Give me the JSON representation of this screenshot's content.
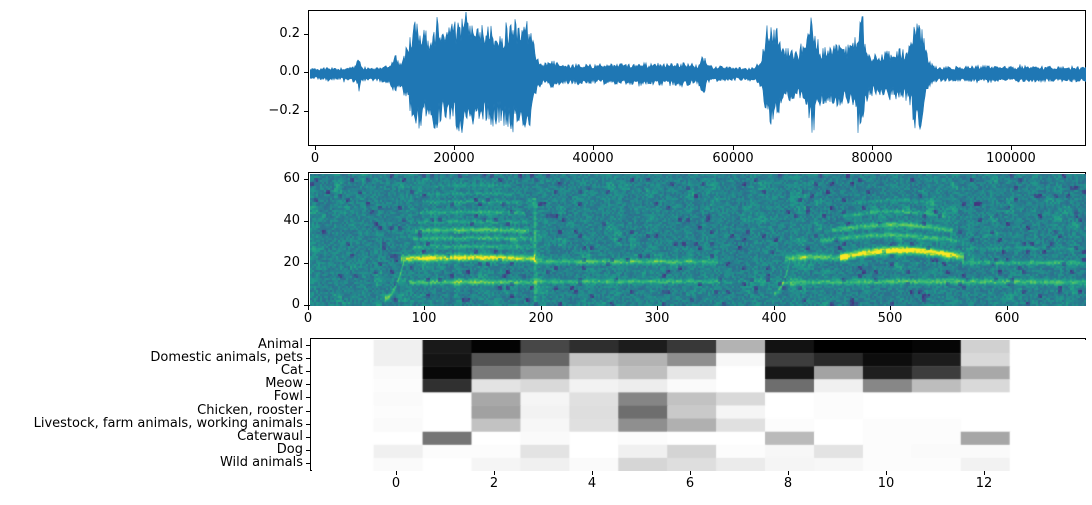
{
  "figure": {
    "background": "#ffffff",
    "axes_color": "#000000",
    "text_color": "#000000"
  },
  "chart_data": [
    {
      "id": "waveform",
      "type": "line",
      "title": "",
      "xlabel": "",
      "ylabel": "",
      "line_color": "#1f77b4",
      "xlim": [
        -1000,
        110600
      ],
      "ylim": [
        -0.38,
        0.325
      ],
      "xticks": [
        {
          "value": 0,
          "label": "0"
        },
        {
          "value": 20000,
          "label": "20000"
        },
        {
          "value": 40000,
          "label": "40000"
        },
        {
          "value": 60000,
          "label": "60000"
        },
        {
          "value": 80000,
          "label": "80000"
        },
        {
          "value": 100000,
          "label": "100000"
        }
      ],
      "yticks": [
        {
          "value": 0.2,
          "label": "0.2"
        },
        {
          "value": 0.0,
          "label": "0.0"
        },
        {
          "value": -0.2,
          "label": "−0.2"
        }
      ],
      "grid": false,
      "envelope": [
        [
          0,
          0.03
        ],
        [
          1500,
          0.035
        ],
        [
          3000,
          0.03
        ],
        [
          4500,
          0.04
        ],
        [
          5600,
          0.045
        ],
        [
          6000,
          0.095
        ],
        [
          6400,
          0.04
        ],
        [
          7500,
          0.035
        ],
        [
          9000,
          0.04
        ],
        [
          10500,
          0.05
        ],
        [
          11300,
          0.12
        ],
        [
          11800,
          0.06
        ],
        [
          12300,
          0.09
        ],
        [
          12800,
          0.14
        ],
        [
          13500,
          0.22
        ],
        [
          14200,
          0.29
        ],
        [
          15000,
          0.26
        ],
        [
          16000,
          0.23
        ],
        [
          17000,
          0.285
        ],
        [
          17800,
          0.25
        ],
        [
          18700,
          0.23
        ],
        [
          19500,
          0.27
        ],
        [
          20300,
          0.31
        ],
        [
          21000,
          0.3
        ],
        [
          22000,
          0.26
        ],
        [
          23000,
          0.285
        ],
        [
          24000,
          0.255
        ],
        [
          25000,
          0.27
        ],
        [
          26000,
          0.245
        ],
        [
          27000,
          0.265
        ],
        [
          28000,
          0.31
        ],
        [
          29000,
          0.285
        ],
        [
          29800,
          0.3
        ],
        [
          30500,
          0.28
        ],
        [
          31000,
          0.22
        ],
        [
          31600,
          0.09
        ],
        [
          32200,
          0.055
        ],
        [
          33000,
          0.06
        ],
        [
          34000,
          0.075
        ],
        [
          35000,
          0.055
        ],
        [
          36500,
          0.05
        ],
        [
          38000,
          0.055
        ],
        [
          40000,
          0.05
        ],
        [
          42000,
          0.06
        ],
        [
          44000,
          0.055
        ],
        [
          46000,
          0.065
        ],
        [
          48000,
          0.055
        ],
        [
          50000,
          0.06
        ],
        [
          52000,
          0.065
        ],
        [
          53500,
          0.06
        ],
        [
          54800,
          0.05
        ],
        [
          55600,
          0.11
        ],
        [
          56100,
          0.05
        ],
        [
          57000,
          0.045
        ],
        [
          58500,
          0.04
        ],
        [
          60000,
          0.035
        ],
        [
          62000,
          0.035
        ],
        [
          63200,
          0.045
        ],
        [
          64000,
          0.1
        ],
        [
          64800,
          0.24
        ],
        [
          65600,
          0.285
        ],
        [
          66400,
          0.23
        ],
        [
          67200,
          0.13
        ],
        [
          68000,
          0.15
        ],
        [
          68800,
          0.12
        ],
        [
          69600,
          0.135
        ],
        [
          70400,
          0.18
        ],
        [
          70900,
          0.29
        ],
        [
          71400,
          0.32
        ],
        [
          71900,
          0.21
        ],
        [
          72600,
          0.145
        ],
        [
          73400,
          0.165
        ],
        [
          74200,
          0.15
        ],
        [
          75000,
          0.17
        ],
        [
          75800,
          0.145
        ],
        [
          76600,
          0.16
        ],
        [
          77300,
          0.2
        ],
        [
          77900,
          0.32
        ],
        [
          78400,
          0.3
        ],
        [
          79000,
          0.15
        ],
        [
          79600,
          0.105
        ],
        [
          80400,
          0.13
        ],
        [
          81200,
          0.11
        ],
        [
          82000,
          0.135
        ],
        [
          82800,
          0.12
        ],
        [
          83600,
          0.14
        ],
        [
          84400,
          0.125
        ],
        [
          85200,
          0.15
        ],
        [
          85800,
          0.25
        ],
        [
          86300,
          0.33
        ],
        [
          86900,
          0.28
        ],
        [
          87500,
          0.15
        ],
        [
          88100,
          0.07
        ],
        [
          88800,
          0.045
        ],
        [
          90000,
          0.038
        ],
        [
          92000,
          0.04
        ],
        [
          94000,
          0.042
        ],
        [
          96000,
          0.048
        ],
        [
          98000,
          0.042
        ],
        [
          100000,
          0.04
        ],
        [
          102000,
          0.045
        ],
        [
          104000,
          0.042
        ],
        [
          106000,
          0.04
        ],
        [
          108000,
          0.043
        ],
        [
          110500,
          0.04
        ]
      ]
    },
    {
      "id": "spectrogram",
      "type": "heatmap",
      "title": "",
      "xlabel": "",
      "ylabel": "",
      "colormap": "viridis",
      "xlim": [
        0,
        667
      ],
      "ylim": [
        0,
        63.5
      ],
      "xticks": [
        {
          "value": 0,
          "label": "0"
        },
        {
          "value": 100,
          "label": "100"
        },
        {
          "value": 200,
          "label": "200"
        },
        {
          "value": 300,
          "label": "300"
        },
        {
          "value": 400,
          "label": "400"
        },
        {
          "value": 500,
          "label": "500"
        },
        {
          "value": 600,
          "label": "600"
        }
      ],
      "yticks": [
        {
          "value": 0,
          "label": "0"
        },
        {
          "value": 20,
          "label": "20"
        },
        {
          "value": 40,
          "label": "40"
        },
        {
          "value": 60,
          "label": "60"
        }
      ],
      "background_level": 0.5,
      "harmonics": [
        {
          "kind": "sweep",
          "x0": 64,
          "x1": 80,
          "y0": 4,
          "y1": 21,
          "w": 1.4,
          "amp": 0.3
        },
        {
          "kind": "line",
          "x0": 78,
          "x1": 193,
          "y": 23,
          "w": 1.6,
          "amp": 0.55,
          "arc": 0.5
        },
        {
          "kind": "line",
          "x0": 193,
          "x1": 350,
          "y": 21.5,
          "w": 1.2,
          "amp": 0.28,
          "arc": 0
        },
        {
          "kind": "line",
          "x0": 85,
          "x1": 195,
          "y": 11.5,
          "w": 1.2,
          "amp": 0.33,
          "arc": 0.3
        },
        {
          "kind": "line",
          "x0": 195,
          "x1": 352,
          "y": 12,
          "w": 1.1,
          "amp": 0.26,
          "arc": 0
        },
        {
          "kind": "line",
          "x0": 88,
          "x1": 190,
          "y": 28.5,
          "w": 1.0,
          "amp": 0.17,
          "arc": 0.4
        },
        {
          "kind": "line",
          "x0": 88,
          "x1": 190,
          "y": 32.5,
          "w": 1.1,
          "amp": 0.22,
          "arc": 0.4
        },
        {
          "kind": "line",
          "x0": 90,
          "x1": 188,
          "y": 36.5,
          "w": 1.2,
          "amp": 0.3,
          "arc": 0.4
        },
        {
          "kind": "line",
          "x0": 92,
          "x1": 186,
          "y": 40.5,
          "w": 1.0,
          "amp": 0.14,
          "arc": 0.4
        },
        {
          "kind": "line",
          "x0": 94,
          "x1": 184,
          "y": 45,
          "w": 1.0,
          "amp": 0.19,
          "arc": 0.4
        },
        {
          "kind": "line",
          "x0": 97,
          "x1": 180,
          "y": 50,
          "w": 0.9,
          "amp": 0.13,
          "arc": 0.3
        },
        {
          "kind": "line",
          "x0": 100,
          "x1": 176,
          "y": 54,
          "w": 0.8,
          "amp": 0.1,
          "arc": 0.3
        },
        {
          "kind": "line",
          "x0": 104,
          "x1": 172,
          "y": 58,
          "w": 0.8,
          "amp": 0.09,
          "arc": 0.3
        },
        {
          "kind": "vline",
          "x": 193,
          "y0": 2,
          "y1": 52,
          "w": 1.6,
          "amp": 0.16
        },
        {
          "kind": "sweep",
          "x0": 398,
          "x1": 412,
          "y0": 6,
          "y1": 22,
          "w": 1.4,
          "amp": 0.22
        },
        {
          "kind": "line",
          "x0": 408,
          "x1": 462,
          "y": 23,
          "w": 1.4,
          "amp": 0.34,
          "arc": 0.8
        },
        {
          "kind": "line",
          "x0": 455,
          "x1": 562,
          "y": 23.8,
          "w": 1.8,
          "amp": 0.6,
          "arc": 3.2
        },
        {
          "kind": "line",
          "x0": 438,
          "x1": 556,
          "y": 31.5,
          "w": 1.2,
          "amp": 0.26,
          "arc": 2.8
        },
        {
          "kind": "line",
          "x0": 448,
          "x1": 552,
          "y": 36.5,
          "w": 1.2,
          "amp": 0.3,
          "arc": 2.8
        },
        {
          "kind": "line",
          "x0": 458,
          "x1": 546,
          "y": 43.5,
          "w": 1.0,
          "amp": 0.17,
          "arc": 2.2
        },
        {
          "kind": "line",
          "x0": 468,
          "x1": 538,
          "y": 49.5,
          "w": 0.9,
          "amp": 0.11,
          "arc": 1.6
        },
        {
          "kind": "line",
          "x0": 560,
          "x1": 667,
          "y": 21,
          "w": 1.1,
          "amp": 0.22,
          "arc": 0
        },
        {
          "kind": "line",
          "x0": 350,
          "x1": 405,
          "y": 12,
          "w": 1.0,
          "amp": 0.1,
          "arc": 0
        },
        {
          "kind": "line",
          "x0": 405,
          "x1": 667,
          "y": 11.5,
          "w": 1.3,
          "amp": 0.3,
          "arc": 0.5
        },
        {
          "kind": "line",
          "x0": 560,
          "x1": 667,
          "y": 28,
          "w": 0.9,
          "amp": 0.09,
          "arc": 0
        }
      ]
    },
    {
      "id": "class_probabilities",
      "type": "heatmap",
      "title": "",
      "xlabel": "",
      "ylabel": "",
      "colormap": "greys",
      "xlim": [
        -1.76,
        14.06
      ],
      "xticks": [
        {
          "value": 0,
          "label": "0"
        },
        {
          "value": 2,
          "label": "2"
        },
        {
          "value": 4,
          "label": "4"
        },
        {
          "value": 6,
          "label": "6"
        },
        {
          "value": 8,
          "label": "8"
        },
        {
          "value": 10,
          "label": "10"
        },
        {
          "value": 12,
          "label": "12"
        }
      ],
      "categories": [
        "Animal",
        "Domestic animals, pets",
        "Cat",
        "Meow",
        "Fowl",
        "Chicken, rooster",
        "Livestock, farm animals, working animals",
        "Caterwaul",
        "Dog",
        "Wild animals"
      ],
      "frames": [
        0,
        1,
        2,
        3,
        4,
        5,
        6,
        7,
        8,
        9,
        10,
        11,
        12,
        13
      ],
      "values": [
        [
          0.06,
          0.9,
          0.99,
          0.72,
          0.82,
          0.89,
          0.78,
          0.3,
          0.93,
          1.0,
          1.0,
          0.98,
          0.18,
          0.0
        ],
        [
          0.06,
          0.92,
          0.67,
          0.6,
          0.23,
          0.3,
          0.44,
          0.03,
          0.76,
          0.84,
          0.95,
          0.89,
          0.15,
          0.0
        ],
        [
          0.02,
          0.97,
          0.53,
          0.38,
          0.16,
          0.25,
          0.1,
          0.0,
          0.91,
          0.36,
          0.88,
          0.76,
          0.34,
          0.0
        ],
        [
          0.01,
          0.81,
          0.11,
          0.15,
          0.05,
          0.07,
          0.02,
          0.0,
          0.57,
          0.06,
          0.47,
          0.26,
          0.15,
          0.0
        ],
        [
          0.02,
          0.0,
          0.34,
          0.04,
          0.12,
          0.48,
          0.24,
          0.15,
          0.0,
          0.01,
          0.0,
          0.0,
          0.0,
          0.0
        ],
        [
          0.01,
          0.0,
          0.37,
          0.05,
          0.13,
          0.57,
          0.21,
          0.04,
          0.0,
          0.01,
          0.0,
          0.0,
          0.0,
          0.0
        ],
        [
          0.02,
          0.0,
          0.24,
          0.03,
          0.12,
          0.44,
          0.31,
          0.12,
          0.01,
          0.0,
          0.01,
          0.01,
          0.0,
          0.0
        ],
        [
          0.0,
          0.54,
          0.0,
          0.02,
          0.0,
          0.01,
          0.0,
          0.0,
          0.27,
          0.0,
          0.01,
          0.01,
          0.35,
          0.0
        ],
        [
          0.06,
          0.01,
          0.01,
          0.11,
          0.0,
          0.06,
          0.17,
          0.01,
          0.03,
          0.11,
          0.01,
          0.02,
          0.02,
          0.0
        ],
        [
          0.02,
          0.0,
          0.04,
          0.06,
          0.02,
          0.16,
          0.13,
          0.08,
          0.04,
          0.03,
          0.01,
          0.01,
          0.05,
          0.0
        ]
      ]
    }
  ]
}
